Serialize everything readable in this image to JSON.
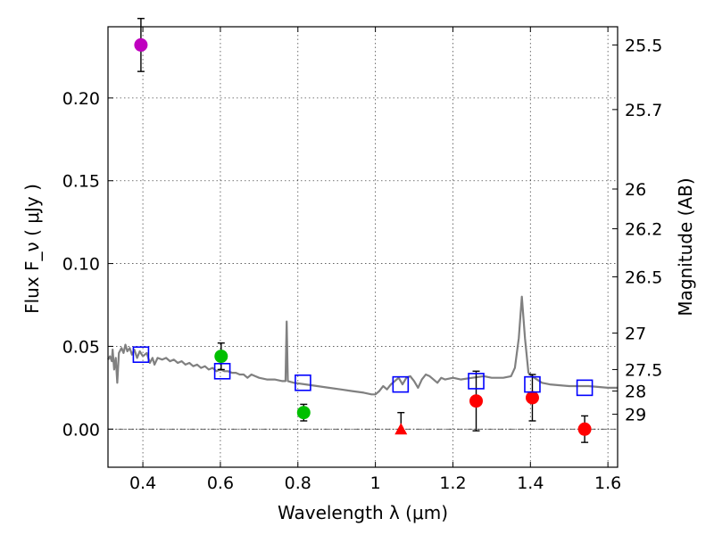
{
  "chart_data": {
    "type": "scatter",
    "title": "",
    "xlabel": "Wavelength  λ (μm)",
    "ylabel": "Flux  F_ν  ( μJy )",
    "ylabel_right": "Magnitude (AB)",
    "xlim": [
      0.31,
      1.625
    ],
    "ylim": [
      -0.023,
      0.243
    ],
    "x_ticks": [
      0.4,
      0.6,
      0.8,
      1.0,
      1.2,
      1.4,
      1.6
    ],
    "x_tick_labels": [
      "0.4",
      "0.6",
      "0.8",
      "1",
      "1.2",
      "1.4",
      "1.6"
    ],
    "y_ticks": [
      0.0,
      0.05,
      0.1,
      0.15,
      0.2
    ],
    "y_tick_labels": [
      "0.00",
      "0.05",
      "0.10",
      "0.15",
      "0.20"
    ],
    "mag_ticks": [
      {
        "label": "25.5",
        "flux": 0.232
      },
      {
        "label": "25.7",
        "flux": 0.193
      },
      {
        "label": "26",
        "flux": 0.145
      },
      {
        "label": "26.2",
        "flux": 0.121
      },
      {
        "label": "26.5",
        "flux": 0.092
      },
      {
        "label": "27",
        "flux": 0.058
      },
      {
        "label": "27.5",
        "flux": 0.036
      },
      {
        "label": "28",
        "flux": 0.023
      },
      {
        "label": "29",
        "flux": 0.009
      }
    ],
    "grid": true,
    "zero_line": true,
    "model_spectrum": {
      "color": "#808080",
      "points": [
        [
          0.31,
          0.042
        ],
        [
          0.315,
          0.044
        ],
        [
          0.32,
          0.041
        ],
        [
          0.322,
          0.048
        ],
        [
          0.326,
          0.036
        ],
        [
          0.33,
          0.043
        ],
        [
          0.334,
          0.028
        ],
        [
          0.338,
          0.046
        ],
        [
          0.345,
          0.049
        ],
        [
          0.35,
          0.046
        ],
        [
          0.355,
          0.051
        ],
        [
          0.36,
          0.047
        ],
        [
          0.366,
          0.049
        ],
        [
          0.372,
          0.045
        ],
        [
          0.378,
          0.048
        ],
        [
          0.385,
          0.043
        ],
        [
          0.392,
          0.047
        ],
        [
          0.4,
          0.044
        ],
        [
          0.41,
          0.046
        ],
        [
          0.418,
          0.04
        ],
        [
          0.425,
          0.043
        ],
        [
          0.43,
          0.039
        ],
        [
          0.438,
          0.043
        ],
        [
          0.45,
          0.042
        ],
        [
          0.46,
          0.043
        ],
        [
          0.47,
          0.041
        ],
        [
          0.48,
          0.042
        ],
        [
          0.49,
          0.04
        ],
        [
          0.5,
          0.041
        ],
        [
          0.51,
          0.039
        ],
        [
          0.52,
          0.04
        ],
        [
          0.53,
          0.038
        ],
        [
          0.54,
          0.039
        ],
        [
          0.55,
          0.037
        ],
        [
          0.56,
          0.038
        ],
        [
          0.57,
          0.036
        ],
        [
          0.58,
          0.037
        ],
        [
          0.59,
          0.035
        ],
        [
          0.6,
          0.036
        ],
        [
          0.61,
          0.035
        ],
        [
          0.62,
          0.035
        ],
        [
          0.63,
          0.034
        ],
        [
          0.64,
          0.034
        ],
        [
          0.65,
          0.033
        ],
        [
          0.66,
          0.033
        ],
        [
          0.67,
          0.031
        ],
        [
          0.68,
          0.033
        ],
        [
          0.69,
          0.032
        ],
        [
          0.7,
          0.031
        ],
        [
          0.72,
          0.03
        ],
        [
          0.74,
          0.03
        ],
        [
          0.76,
          0.029
        ],
        [
          0.768,
          0.029
        ],
        [
          0.771,
          0.065
        ],
        [
          0.774,
          0.029
        ],
        [
          0.79,
          0.028
        ],
        [
          0.82,
          0.027
        ],
        [
          0.85,
          0.026
        ],
        [
          0.88,
          0.025
        ],
        [
          0.91,
          0.024
        ],
        [
          0.94,
          0.023
        ],
        [
          0.97,
          0.022
        ],
        [
          0.99,
          0.021
        ],
        [
          1.0,
          0.021
        ],
        [
          1.01,
          0.023
        ],
        [
          1.02,
          0.026
        ],
        [
          1.03,
          0.024
        ],
        [
          1.04,
          0.027
        ],
        [
          1.05,
          0.029
        ],
        [
          1.06,
          0.031
        ],
        [
          1.07,
          0.027
        ],
        [
          1.08,
          0.031
        ],
        [
          1.09,
          0.032
        ],
        [
          1.1,
          0.029
        ],
        [
          1.11,
          0.025
        ],
        [
          1.12,
          0.03
        ],
        [
          1.13,
          0.033
        ],
        [
          1.14,
          0.032
        ],
        [
          1.15,
          0.03
        ],
        [
          1.16,
          0.028
        ],
        [
          1.17,
          0.031
        ],
        [
          1.18,
          0.03
        ],
        [
          1.2,
          0.031
        ],
        [
          1.22,
          0.03
        ],
        [
          1.25,
          0.031
        ],
        [
          1.28,
          0.032
        ],
        [
          1.3,
          0.031
        ],
        [
          1.33,
          0.031
        ],
        [
          1.35,
          0.032
        ],
        [
          1.36,
          0.037
        ],
        [
          1.37,
          0.055
        ],
        [
          1.378,
          0.08
        ],
        [
          1.386,
          0.055
        ],
        [
          1.395,
          0.034
        ],
        [
          1.41,
          0.031
        ],
        [
          1.43,
          0.028
        ],
        [
          1.45,
          0.027
        ],
        [
          1.5,
          0.026
        ],
        [
          1.55,
          0.026
        ],
        [
          1.6,
          0.025
        ],
        [
          1.625,
          0.025
        ]
      ]
    },
    "series": [
      {
        "marker": "circle",
        "color": "#bf00bf",
        "points": [
          {
            "x": 0.395,
            "y": 0.232,
            "err": 0.016
          }
        ]
      },
      {
        "marker": "circle",
        "color": "#00bf00",
        "points": [
          {
            "x": 0.602,
            "y": 0.044,
            "err": 0.008
          }
        ]
      },
      {
        "marker": "circle",
        "color": "#00bf00",
        "points": [
          {
            "x": 0.815,
            "y": 0.01,
            "err": 0.005
          }
        ]
      },
      {
        "marker": "triangle",
        "color": "#ff0000",
        "points": [
          {
            "x": 1.066,
            "y": 0.0,
            "err_up": 0.01,
            "err_down": 0.0
          }
        ]
      },
      {
        "marker": "circle",
        "color": "#ff0000",
        "points": [
          {
            "x": 1.26,
            "y": 0.017,
            "err": 0.018
          },
          {
            "x": 1.405,
            "y": 0.019,
            "err": 0.014
          },
          {
            "x": 1.54,
            "y": 0.0,
            "err": 0.008
          }
        ]
      },
      {
        "marker": "open-square",
        "color": "#0000ff",
        "points": [
          {
            "x": 0.395,
            "y": 0.045
          },
          {
            "x": 0.605,
            "y": 0.035
          },
          {
            "x": 0.813,
            "y": 0.028
          },
          {
            "x": 1.065,
            "y": 0.027
          },
          {
            "x": 1.26,
            "y": 0.029
          },
          {
            "x": 1.405,
            "y": 0.027
          },
          {
            "x": 1.54,
            "y": 0.025
          }
        ]
      }
    ]
  }
}
